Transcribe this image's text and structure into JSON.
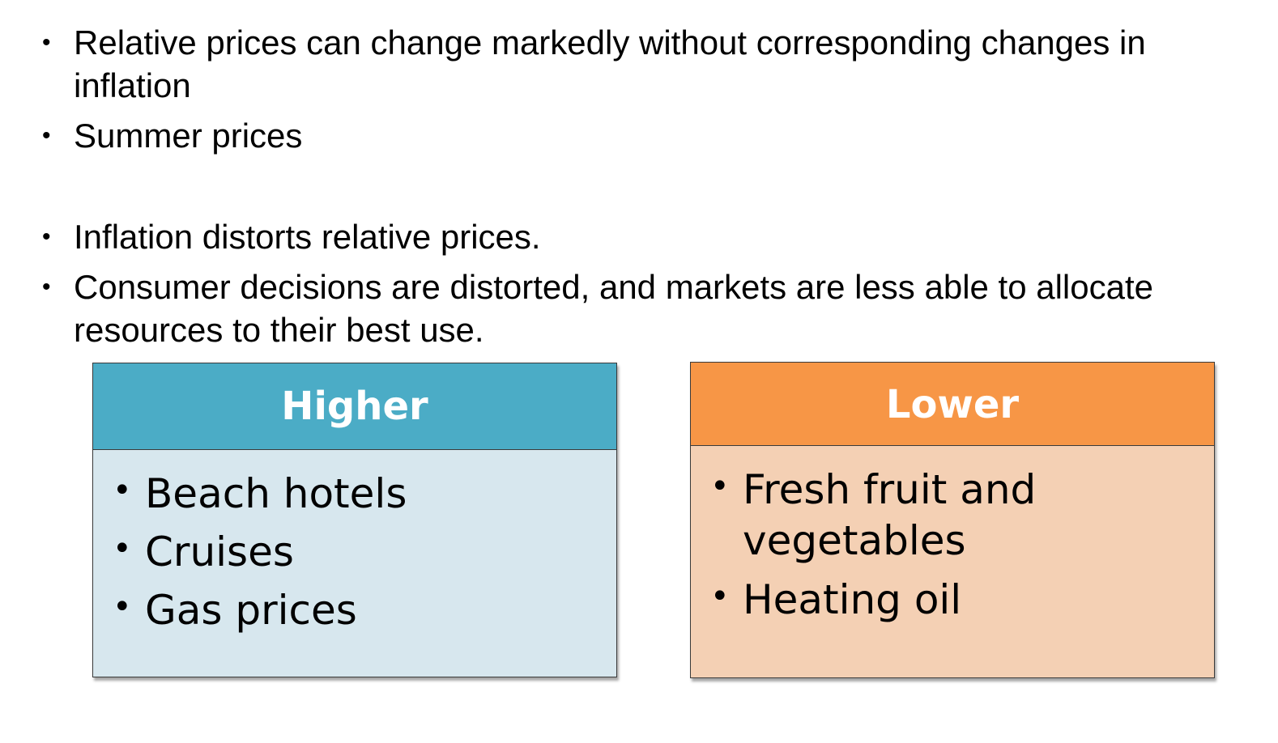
{
  "bullets": [
    "Relative prices can change markedly without corresponding changes in inflation",
    "Summer prices",
    "Inflation distorts relative prices.",
    "Consumer decisions are distorted, and markets are less able to allocate resources to their best use."
  ],
  "bullet_symbol": "•",
  "higher_box": {
    "title": "Higher",
    "items": [
      "Beach hotels",
      "Cruises",
      "Gas prices"
    ],
    "header_color": "#4BACC6",
    "body_color": "#D7E7EE"
  },
  "lower_box": {
    "title": "Lower",
    "items": [
      "Fresh fruit and vegetables",
      "Heating oil"
    ],
    "header_color": "#F79646",
    "body_color": "#F4D0B4"
  }
}
